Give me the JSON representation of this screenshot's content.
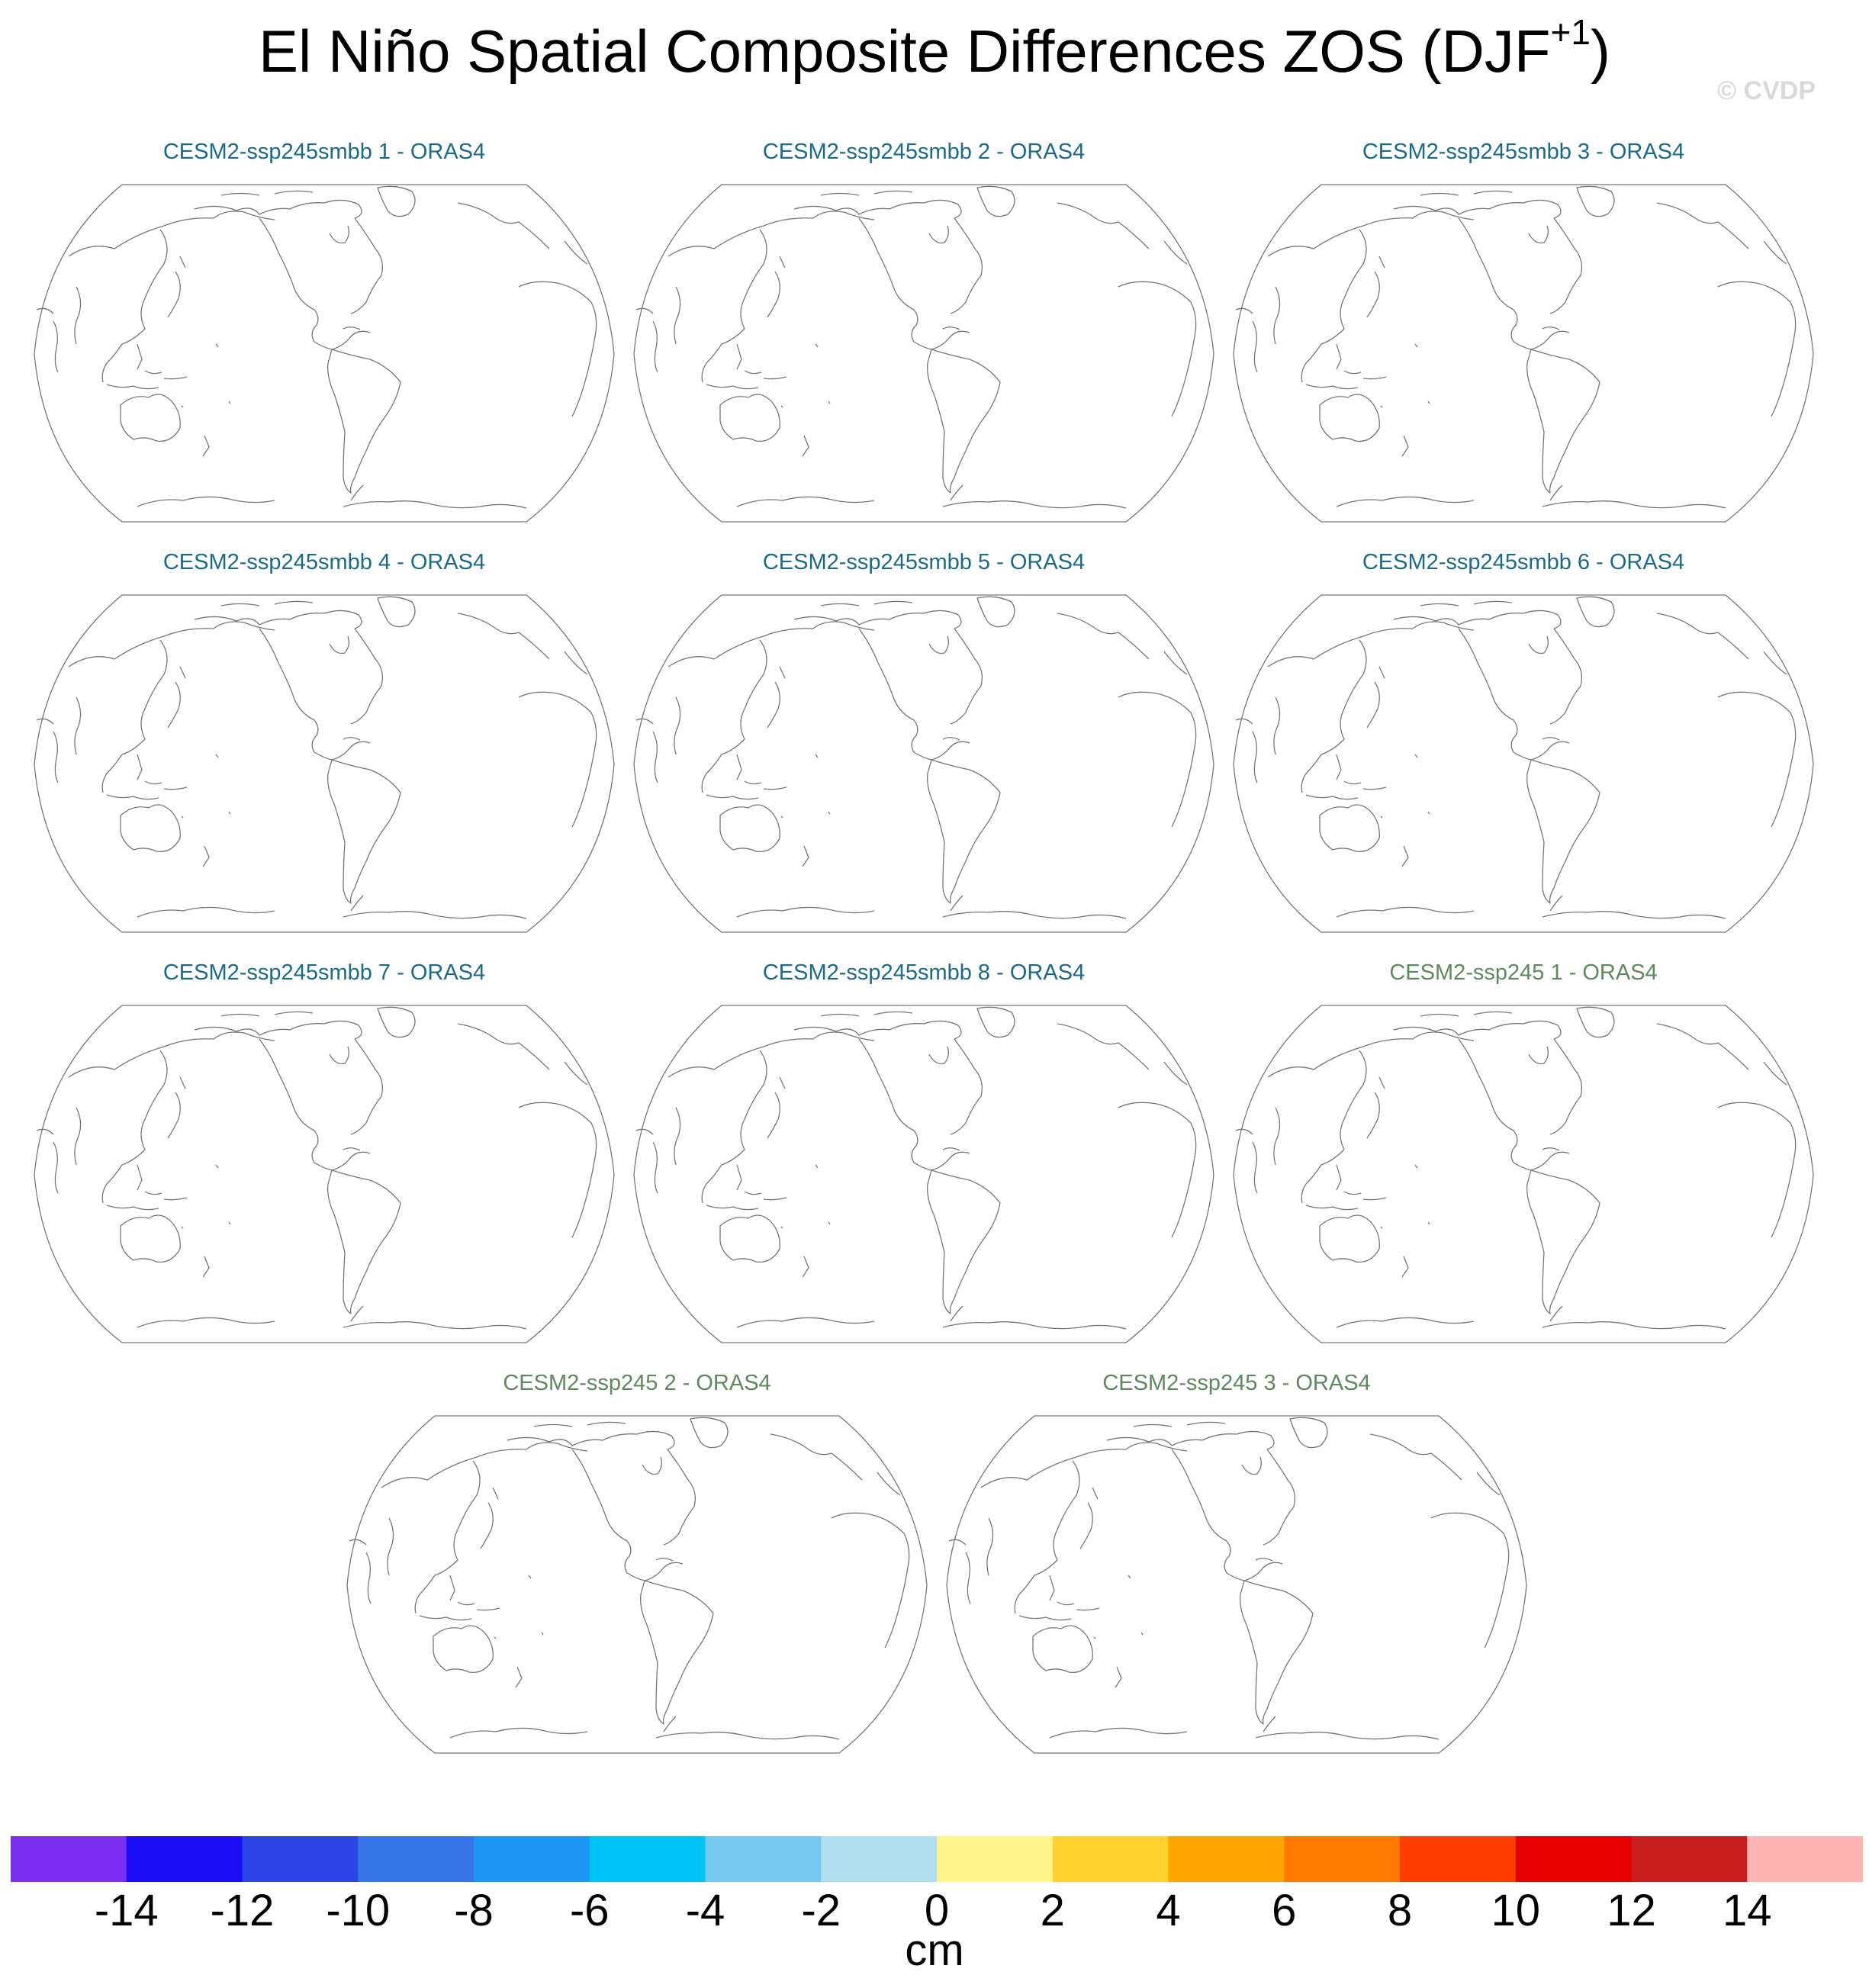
{
  "title": {
    "main": "El Niño Spatial Composite Differences ZOS (DJF",
    "superscript": "+1",
    "close": ")"
  },
  "watermark": "© CVDP",
  "colors": {
    "smbb_title": "#1a6a8a",
    "ssp245_title": "#5c8a5c",
    "coast": "#777777"
  },
  "panels": [
    {
      "title": "CESM2-ssp245smbb 1 - ORAS4",
      "group": "smbb"
    },
    {
      "title": "CESM2-ssp245smbb 2 - ORAS4",
      "group": "smbb"
    },
    {
      "title": "CESM2-ssp245smbb 3 - ORAS4",
      "group": "smbb"
    },
    {
      "title": "CESM2-ssp245smbb 4 - ORAS4",
      "group": "smbb"
    },
    {
      "title": "CESM2-ssp245smbb 5 - ORAS4",
      "group": "smbb"
    },
    {
      "title": "CESM2-ssp245smbb 6 - ORAS4",
      "group": "smbb"
    },
    {
      "title": "CESM2-ssp245smbb 7 - ORAS4",
      "group": "smbb"
    },
    {
      "title": "CESM2-ssp245smbb 8 - ORAS4",
      "group": "smbb"
    },
    {
      "title": "CESM2-ssp245 1 - ORAS4",
      "group": "ssp245"
    },
    {
      "title": "CESM2-ssp245 2 - ORAS4",
      "group": "ssp245"
    },
    {
      "title": "CESM2-ssp245 3 - ORAS4",
      "group": "ssp245"
    }
  ],
  "colorbar": {
    "units": "cm",
    "colors": [
      "#7a2ef0",
      "#1a0df5",
      "#2c44e6",
      "#3674e8",
      "#1e96f5",
      "#00c4f5",
      "#76c8f0",
      "#b0ddf0",
      "#fff58a",
      "#ffd22e",
      "#ffa500",
      "#ff7800",
      "#ff3c00",
      "#e60000",
      "#c81e1e",
      "#ffb4b4"
    ],
    "ticks": [
      "-14",
      "-12",
      "-10",
      "-8",
      "-6",
      "-4",
      "-2",
      "0",
      "2",
      "4",
      "6",
      "8",
      "10",
      "12",
      "14"
    ]
  }
}
